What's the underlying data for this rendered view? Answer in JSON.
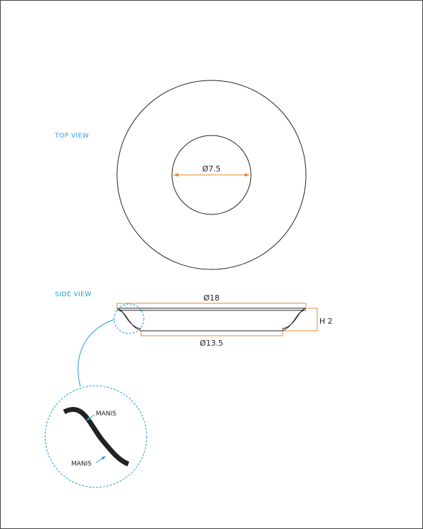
{
  "views": {
    "top_label": "TOP VIEW",
    "side_label": "SIDE VIEW"
  },
  "dimensions": {
    "inner_diameter": "Ø7.5",
    "outer_diameter": "Ø18",
    "bottom_diameter": "Ø13.5",
    "height": "H 2"
  },
  "detail": {
    "callout_top": "MANIS",
    "callout_bottom": "MANIS"
  },
  "colors": {
    "label_blue": "#1aa0d6",
    "dimension_orange": "#e8892a",
    "line": "#222222"
  }
}
